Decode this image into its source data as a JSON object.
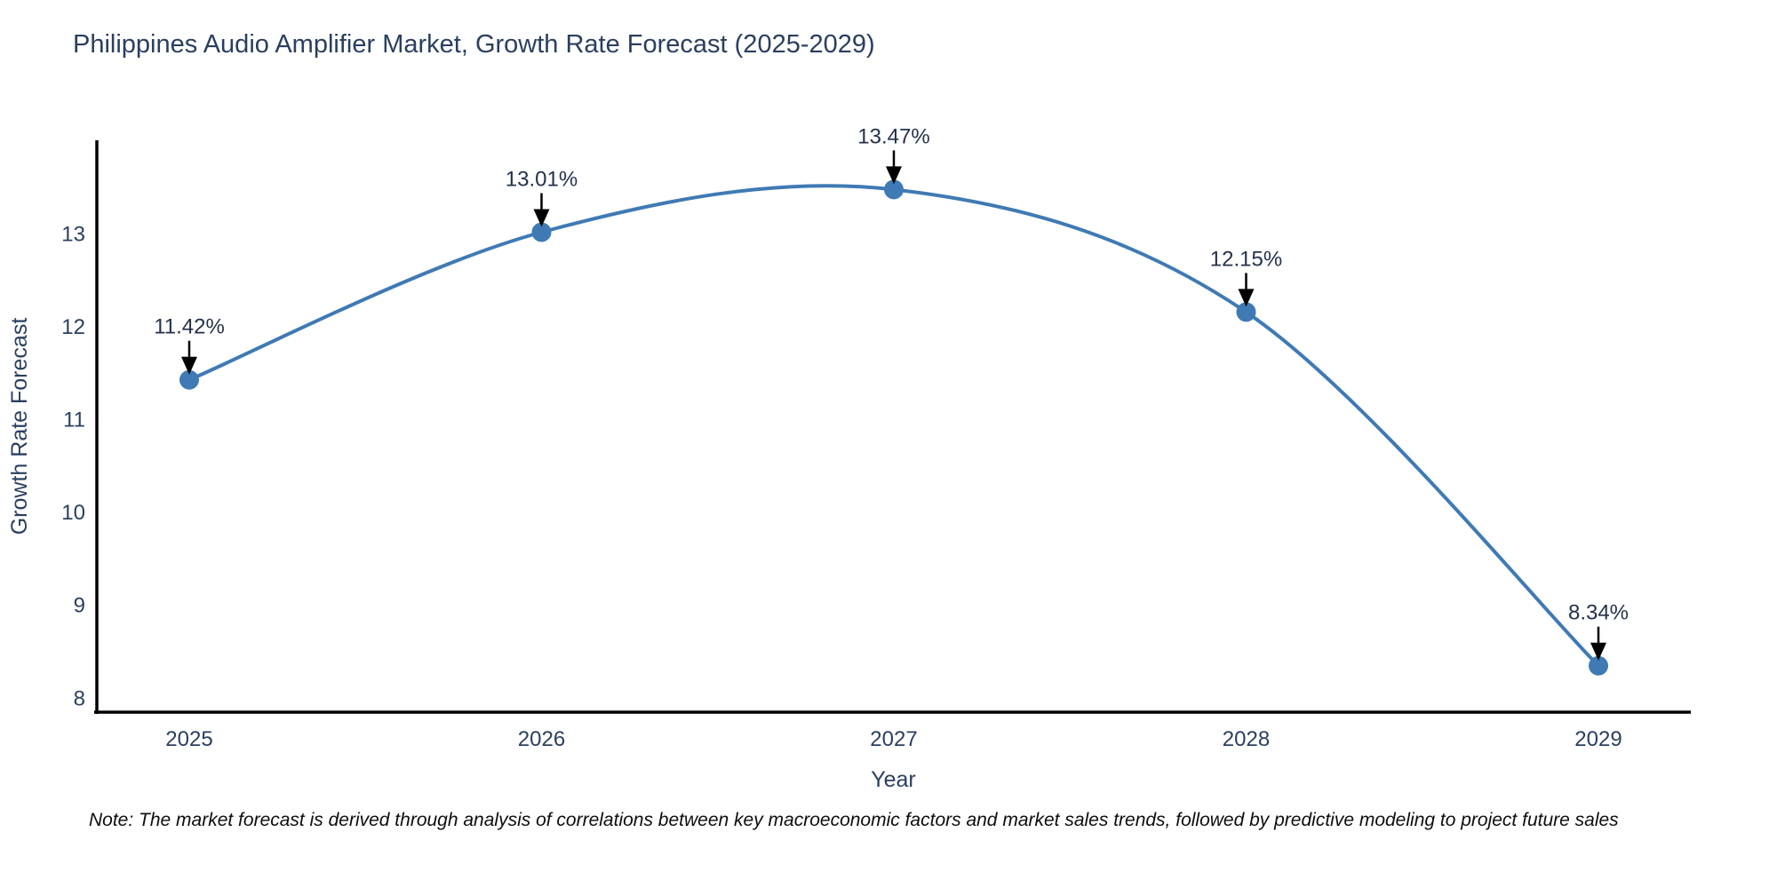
{
  "title": "Philippines Audio Amplifier Market, Growth Rate Forecast (2025-2029)",
  "footnote": "Note: The market forecast is derived through analysis of correlations between key macroeconomic factors and market sales trends, followed by predictive modeling to project future sales",
  "colors": {
    "line": "#3f7ab4",
    "marker": "#3f7ab4",
    "title_text": "#2a3f5f",
    "axis_text": "#2a3f5f",
    "axis_line": "#000000",
    "annotation_text": "#24324a",
    "arrow": "#000000",
    "background": "#ffffff"
  },
  "chart_data": {
    "type": "line",
    "line_shape": "spline",
    "x": [
      "2025",
      "2026",
      "2027",
      "2028",
      "2029"
    ],
    "values": [
      11.42,
      13.01,
      13.47,
      12.15,
      8.34
    ],
    "annotations": [
      "11.42%",
      "13.01%",
      "13.47%",
      "12.15%",
      "8.34%"
    ],
    "title": "Philippines Audio Amplifier Market, Growth Rate Forecast (2025-2029)",
    "xlabel": "Year",
    "ylabel": "Growth Rate Forecast",
    "yticks": [
      8,
      9,
      10,
      11,
      12,
      13
    ],
    "ylim": [
      7.84,
      14.0
    ],
    "grid": false,
    "legend": "none",
    "marker_style": "circle"
  }
}
